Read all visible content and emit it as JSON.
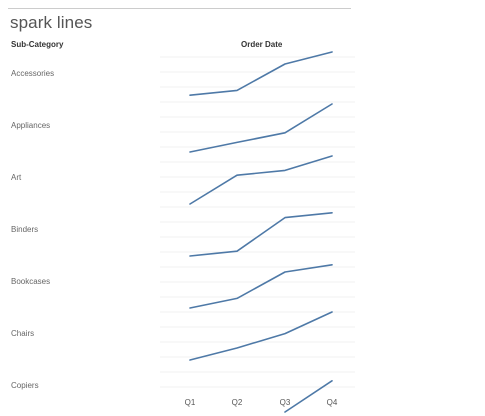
{
  "title": "spark lines",
  "headers": {
    "sub_category": "Sub-Category",
    "order_date": "Order Date"
  },
  "colors": {
    "line": "#4e79a7",
    "grid": "#f0f0f0",
    "rule": "#cccccc"
  },
  "chart_data": {
    "type": "line",
    "title": "",
    "xlabel": "Order Date",
    "ylabel": "Sub-Category",
    "categories": [
      "Q1",
      "Q2",
      "Q3",
      "Q4"
    ],
    "grid": true,
    "legend": "none",
    "series": [
      {
        "name": "Accessories",
        "values": [
          0.1,
          0.2,
          0.75,
          1.0
        ]
      },
      {
        "name": "Appliances",
        "values": [
          0.0,
          0.2,
          0.4,
          1.0
        ]
      },
      {
        "name": "Art",
        "values": [
          0.0,
          0.6,
          0.7,
          1.0
        ]
      },
      {
        "name": "Binders",
        "values": [
          0.0,
          0.1,
          0.8,
          0.9
        ]
      },
      {
        "name": "Bookcases",
        "values": [
          0.0,
          0.2,
          0.75,
          0.9
        ]
      },
      {
        "name": "Chairs",
        "values": [
          0.0,
          0.25,
          0.55,
          1.0
        ]
      },
      {
        "name": "Copiers",
        "values": [
          null,
          null,
          0.0,
          0.65
        ]
      }
    ]
  }
}
